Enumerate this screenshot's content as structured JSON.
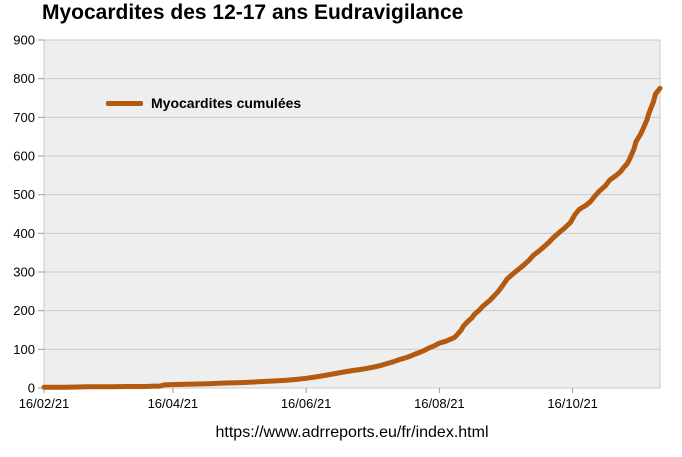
{
  "title": "Myocardites des 12-17 ans Eudravigilance",
  "caption": "https://www.adrreports.eu/fr/index.html",
  "legend": {
    "label": "Myocardites cumulées"
  },
  "chart_data": {
    "type": "line",
    "title": "Myocardites des 12-17 ans Eudravigilance",
    "xlabel": "",
    "ylabel": "",
    "ylim": [
      0,
      900
    ],
    "y_ticks": [
      0,
      100,
      200,
      300,
      400,
      500,
      600,
      700,
      800,
      900
    ],
    "x_domain": [
      0,
      282
    ],
    "x_ticks": [
      {
        "day": 0,
        "label": "16/02/21"
      },
      {
        "day": 59,
        "label": "16/04/21"
      },
      {
        "day": 120,
        "label": "16/06/21"
      },
      {
        "day": 181,
        "label": "16/08/21"
      },
      {
        "day": 242,
        "label": "16/10/21"
      }
    ],
    "grid": "horizontal",
    "legend_position": "top-left-inside",
    "plot_bg": "#eeeeee",
    "grid_color": "#c9c9c9",
    "axis_color": "#9a9a9a",
    "series": [
      {
        "name": "Myocardites cumulées",
        "color": "#b45a10",
        "points": [
          [
            0,
            2
          ],
          [
            10,
            2
          ],
          [
            20,
            3
          ],
          [
            30,
            3
          ],
          [
            40,
            4
          ],
          [
            46,
            4
          ],
          [
            51,
            5
          ],
          [
            53,
            5
          ],
          [
            55,
            8
          ],
          [
            60,
            9
          ],
          [
            68,
            10
          ],
          [
            75,
            11
          ],
          [
            83,
            13
          ],
          [
            90,
            14
          ],
          [
            98,
            16
          ],
          [
            105,
            18
          ],
          [
            111,
            20
          ],
          [
            115,
            22
          ],
          [
            120,
            25
          ],
          [
            126,
            30
          ],
          [
            131,
            35
          ],
          [
            136,
            40
          ],
          [
            141,
            45
          ],
          [
            146,
            49
          ],
          [
            150,
            53
          ],
          [
            154,
            58
          ],
          [
            157,
            63
          ],
          [
            160,
            68
          ],
          [
            163,
            74
          ],
          [
            166,
            79
          ],
          [
            168,
            83
          ],
          [
            170,
            88
          ],
          [
            172,
            92
          ],
          [
            174,
            97
          ],
          [
            176,
            103
          ],
          [
            179,
            110
          ],
          [
            181,
            116
          ],
          [
            184,
            121
          ],
          [
            186,
            126
          ],
          [
            188,
            131
          ],
          [
            189,
            137
          ],
          [
            191,
            150
          ],
          [
            192,
            160
          ],
          [
            194,
            172
          ],
          [
            196,
            182
          ],
          [
            197,
            190
          ],
          [
            199,
            200
          ],
          [
            201,
            212
          ],
          [
            204,
            226
          ],
          [
            206,
            238
          ],
          [
            208,
            250
          ],
          [
            210,
            265
          ],
          [
            212,
            282
          ],
          [
            214,
            292
          ],
          [
            216,
            301
          ],
          [
            219,
            315
          ],
          [
            222,
            330
          ],
          [
            224,
            343
          ],
          [
            227,
            356
          ],
          [
            229,
            366
          ],
          [
            231,
            376
          ],
          [
            233,
            388
          ],
          [
            236,
            403
          ],
          [
            238,
            412
          ],
          [
            241,
            428
          ],
          [
            243,
            448
          ],
          [
            245,
            462
          ],
          [
            248,
            472
          ],
          [
            250,
            481
          ],
          [
            252,
            495
          ],
          [
            254,
            508
          ],
          [
            257,
            523
          ],
          [
            259,
            538
          ],
          [
            262,
            550
          ],
          [
            264,
            560
          ],
          [
            265,
            568
          ],
          [
            267,
            580
          ],
          [
            268,
            591
          ],
          [
            270,
            617
          ],
          [
            271,
            637
          ],
          [
            273,
            655
          ],
          [
            274,
            667
          ],
          [
            276,
            693
          ],
          [
            277,
            712
          ],
          [
            279,
            740
          ],
          [
            280,
            761
          ],
          [
            282,
            775
          ]
        ]
      }
    ]
  }
}
